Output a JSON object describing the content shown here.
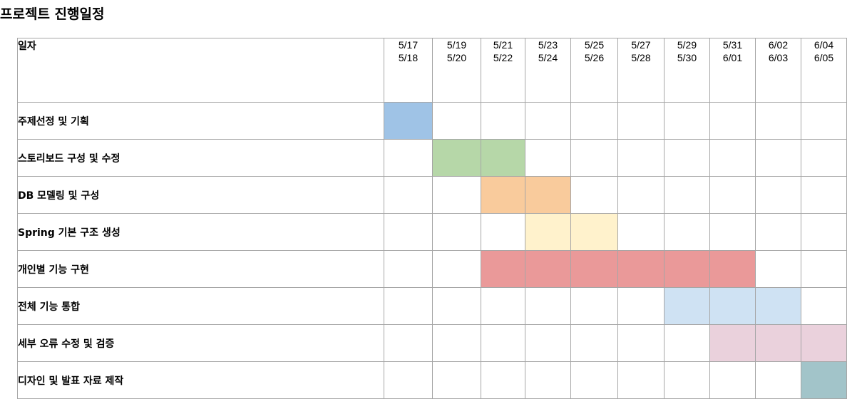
{
  "title": "프로젝트 진행일정",
  "header_label": "일자",
  "periods": [
    {
      "start": "5/17",
      "end": "5/18"
    },
    {
      "start": "5/19",
      "end": "5/20"
    },
    {
      "start": "5/21",
      "end": "5/22"
    },
    {
      "start": "5/23",
      "end": "5/24"
    },
    {
      "start": "5/25",
      "end": "5/26"
    },
    {
      "start": "5/27",
      "end": "5/28"
    },
    {
      "start": "5/29",
      "end": "5/30"
    },
    {
      "start": "5/31",
      "end": "6/01"
    },
    {
      "start": "6/02",
      "end": "6/03"
    },
    {
      "start": "6/04",
      "end": "6/05"
    }
  ],
  "tasks": [
    {
      "name": "주제선정 및 기획",
      "start_period": 0,
      "end_period": 0,
      "color": "#9fc3e6"
    },
    {
      "name": "스토리보드 구성 및 수정",
      "start_period": 1,
      "end_period": 2,
      "color": "#b6d7a8"
    },
    {
      "name": "DB 모델링 및 구성",
      "start_period": 2,
      "end_period": 3,
      "color": "#f9cb9c"
    },
    {
      "name": "Spring 기본 구조 생성",
      "start_period": 3,
      "end_period": 4,
      "color": "#fff2cc"
    },
    {
      "name": "개인별 기능 구현",
      "start_period": 2,
      "end_period": 7,
      "color": "#ea9999"
    },
    {
      "name": "전체 기능 통합",
      "start_period": 6,
      "end_period": 8,
      "color": "#cfe2f3"
    },
    {
      "name": "세부 오류 수정 및 검증",
      "start_period": 7,
      "end_period": 9,
      "color": "#ead1dc"
    },
    {
      "name": "디자인 및 발표 자료 제작",
      "start_period": 9,
      "end_period": 9,
      "color": "#a2c4c9"
    }
  ],
  "grid_color": "#a6a6a6"
}
